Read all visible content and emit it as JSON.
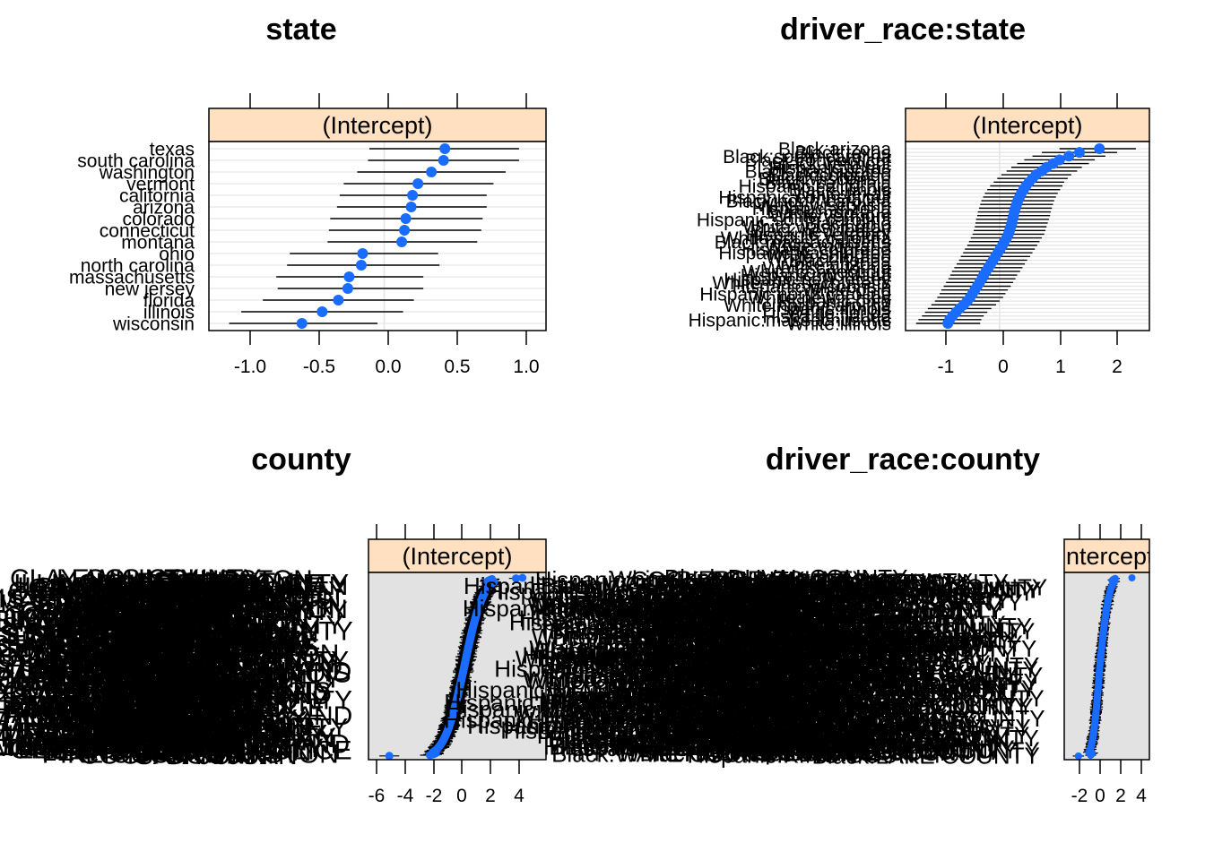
{
  "colors": {
    "point": "#1a6cff",
    "strip": "#ffe0c0",
    "grid": "#e6e6e6",
    "panel_bg_dense": "#e2e2e2",
    "panel_bg": "#ffffff"
  },
  "chart_data": [
    {
      "type": "dotplot",
      "title": "state",
      "strip": "(Intercept)",
      "xlim": [
        -1.3,
        1.2
      ],
      "xticks": [
        -1.0,
        -0.5,
        0.0,
        0.5,
        1.0
      ],
      "xtick_labels": [
        "-1.0",
        "-0.5",
        "0.0",
        "0.5",
        "1.0"
      ],
      "grid": true,
      "categories": [
        "wisconsin",
        "illinois",
        "florida",
        "new jersey",
        "massachusetts",
        "north carolina",
        "ohio",
        "montana",
        "connecticut",
        "colorado",
        "arizona",
        "california",
        "vermont",
        "washington",
        "south carolina",
        "texas"
      ],
      "values": [
        -0.61,
        -0.46,
        -0.34,
        -0.27,
        -0.26,
        -0.17,
        -0.16,
        0.13,
        0.15,
        0.16,
        0.2,
        0.21,
        0.25,
        0.35,
        0.44,
        0.45
      ],
      "lower": [
        -1.15,
        -1.06,
        -0.9,
        -0.79,
        -0.8,
        -0.72,
        -0.7,
        -0.42,
        -0.41,
        -0.4,
        -0.35,
        -0.33,
        -0.3,
        -0.2,
        -0.12,
        -0.11
      ],
      "upper": [
        -0.05,
        0.14,
        0.22,
        0.29,
        0.29,
        0.41,
        0.4,
        0.69,
        0.72,
        0.73,
        0.76,
        0.76,
        0.81,
        0.9,
        1.0,
        1.0
      ]
    },
    {
      "type": "dotplot",
      "title": "driver_race:state",
      "strip": "(Intercept)",
      "xlim": [
        -1.6,
        2.55
      ],
      "xticks": [
        -1,
        0,
        1,
        2
      ],
      "xtick_labels": [
        "-1",
        "0",
        "1",
        "2"
      ],
      "grid": true,
      "categories": [
        "White:illinois",
        "Hispanic:massachusetts",
        "Hispanic:florida",
        "White:florida",
        "Hispanic:illinois",
        "White:north carolina",
        "Hispanic:ohio",
        "White:new jersey",
        "Hispanic:north carolina",
        "White:ohio",
        "Hispanic:wisconsin",
        "White:massachusetts",
        "Hispanic:new jersey",
        "Hispanic:montana",
        "White:connecticut",
        "White:california",
        "White:arizona",
        "Black:florida",
        "White:colorado",
        "Hispanic:washington",
        "Hispanic:colorado",
        "White:montana",
        "Black:massachusetts",
        "White:south carolina",
        "Hispanic:vermont",
        "Black:new jersey",
        "White:washington",
        "Black:ohio",
        "Hispanic:south carolina",
        "White:vermont",
        "Black:montana",
        "Hispanic:arizona",
        "White:wisconsin",
        "Black:north carolina",
        "Hispanic:connecticut",
        "White:texas",
        "Black:illinois",
        "Hispanic:california",
        "Black:california",
        "Black:wisconsin",
        "Black:colorado",
        "Black:washington",
        "Hispanic:texas",
        "Black:vermont",
        "Black:connecticut",
        "Black:south carolina",
        "Black:texas",
        "Black:arizona"
      ],
      "values": [
        -0.88,
        -0.85,
        -0.8,
        -0.74,
        -0.68,
        -0.61,
        -0.55,
        -0.5,
        -0.46,
        -0.42,
        -0.38,
        -0.34,
        -0.3,
        -0.27,
        -0.23,
        -0.19,
        -0.15,
        -0.11,
        -0.07,
        -0.03,
        0.01,
        0.05,
        0.08,
        0.12,
        0.15,
        0.17,
        0.19,
        0.21,
        0.22,
        0.24,
        0.25,
        0.27,
        0.29,
        0.31,
        0.34,
        0.37,
        0.41,
        0.45,
        0.5,
        0.56,
        0.62,
        0.72,
        0.8,
        0.91,
        1.02,
        1.18,
        1.36,
        1.7
      ],
      "lower": [
        -1.42,
        -1.38,
        -1.32,
        -1.27,
        -1.22,
        -1.16,
        -1.1,
        -1.06,
        -1.02,
        -0.99,
        -0.95,
        -0.91,
        -0.87,
        -0.84,
        -0.81,
        -0.77,
        -0.73,
        -0.69,
        -0.66,
        -0.62,
        -0.59,
        -0.55,
        -0.52,
        -0.49,
        -0.46,
        -0.44,
        -0.42,
        -0.41,
        -0.4,
        -0.38,
        -0.37,
        -0.35,
        -0.33,
        -0.31,
        -0.28,
        -0.25,
        -0.21,
        -0.16,
        -0.1,
        -0.04,
        0.03,
        0.12,
        0.2,
        0.3,
        0.42,
        0.56,
        0.72,
        1.02
      ],
      "upper": [
        -0.33,
        -0.31,
        -0.27,
        -0.21,
        -0.14,
        -0.06,
        0.0,
        0.06,
        0.1,
        0.14,
        0.19,
        0.23,
        0.27,
        0.3,
        0.35,
        0.39,
        0.43,
        0.47,
        0.52,
        0.56,
        0.6,
        0.64,
        0.68,
        0.72,
        0.76,
        0.78,
        0.8,
        0.82,
        0.84,
        0.86,
        0.87,
        0.89,
        0.91,
        0.93,
        0.96,
        0.99,
        1.03,
        1.07,
        1.1,
        1.16,
        1.22,
        1.32,
        1.4,
        1.52,
        1.62,
        1.8,
        2.0,
        2.32
      ]
    },
    {
      "type": "dotplot-dense",
      "title": "county",
      "strip": "(Intercept)",
      "xlim": [
        -6.9,
        5.9
      ],
      "xticks": [
        -6,
        -4,
        -2,
        0,
        2,
        4
      ],
      "xtick_labels": [
        "-6",
        "-4",
        "-2",
        "0",
        "2",
        "4"
      ],
      "n_levels": 500,
      "visible_labels": [
        "CLAY COUNTY",
        "ILLINOIS",
        "PIKE COUNTY",
        "LEE COUNTY",
        "THURSTON",
        "SAN JUAN",
        "GRANT COUNTY",
        "ISLAND",
        "LEWIS COUNTY",
        "ILLINOIS STATE POLICE",
        "COOK COUNTY",
        "MARION COUNTY"
      ],
      "quantiles": {
        "min": -5.4,
        "p01": -2.6,
        "median": 0.0,
        "p99": 2.5,
        "max": 4.2
      }
    },
    {
      "type": "dotplot-dense",
      "title": "driver_race:county",
      "strip": "(Intercept)",
      "xlim": [
        -3.2,
        4.6
      ],
      "xticks": [
        -2,
        0,
        2,
        4
      ],
      "xtick_labels": [
        "-2",
        "0",
        "2",
        "4"
      ],
      "n_levels": 1200,
      "visible_labels": [
        "Hispanic:KING COUNTY",
        "White:PIERCE COUNTY",
        "Black:LAKE COUNTY",
        "Hispanic:COOK COUNTY",
        "Black:DUVAL COUNTY",
        "White:HARRIS COUNTY",
        "Hispanic:MIAMI-DADE COUNTY",
        "Black:WAKE COUNTY",
        "White:ORANGE COUNTY"
      ],
      "quantiles": {
        "min": -1.9,
        "p01": -1.1,
        "median": 0.05,
        "p99": 1.6,
        "max": 3.0
      }
    }
  ]
}
